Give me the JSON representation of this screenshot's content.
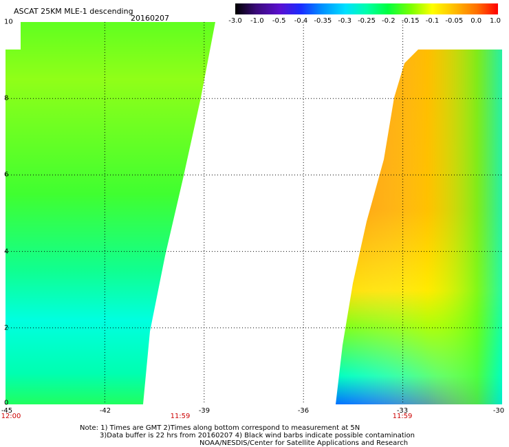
{
  "header": {
    "title": "ASCAT 25KM MLE-1 descending",
    "date": "20160207"
  },
  "colorbar": {
    "labels": [
      "-3.0",
      "-1.0",
      "-0.5",
      "-0.4",
      "-0.35",
      "-0.3",
      "-0.25",
      "-0.2",
      "-0.15",
      "-0.1",
      "-0.05",
      "0.0",
      "1.0"
    ],
    "colors": [
      "#000000",
      "#3a0a7a",
      "#5a10d0",
      "#1a2cff",
      "#0090ff",
      "#00e0ff",
      "#00ffaa",
      "#00ff40",
      "#7dff00",
      "#ffff00",
      "#ffc000",
      "#ff7000",
      "#ff0000"
    ]
  },
  "axes": {
    "y_labels": [
      "10",
      "8",
      "6",
      "4",
      "2",
      "0"
    ],
    "x_labels": [
      "-45",
      "-42",
      "-39",
      "-36",
      "-33",
      "-30"
    ],
    "times": [
      "12:00",
      "11:59",
      "11:59"
    ],
    "lat_range": [
      0,
      10
    ],
    "lon_range": [
      -45,
      -30
    ]
  },
  "footer": {
    "line1": "Note: 1) Times are GMT 2)Times along bottom correspond to measurement at 5N",
    "line2": "3)Data buffer is 22 hrs from 20160207 4) Black wind barbs indicate possible contamination",
    "line3": "NOAA/NESDIS/Center for Satellite Applications and Research"
  }
}
